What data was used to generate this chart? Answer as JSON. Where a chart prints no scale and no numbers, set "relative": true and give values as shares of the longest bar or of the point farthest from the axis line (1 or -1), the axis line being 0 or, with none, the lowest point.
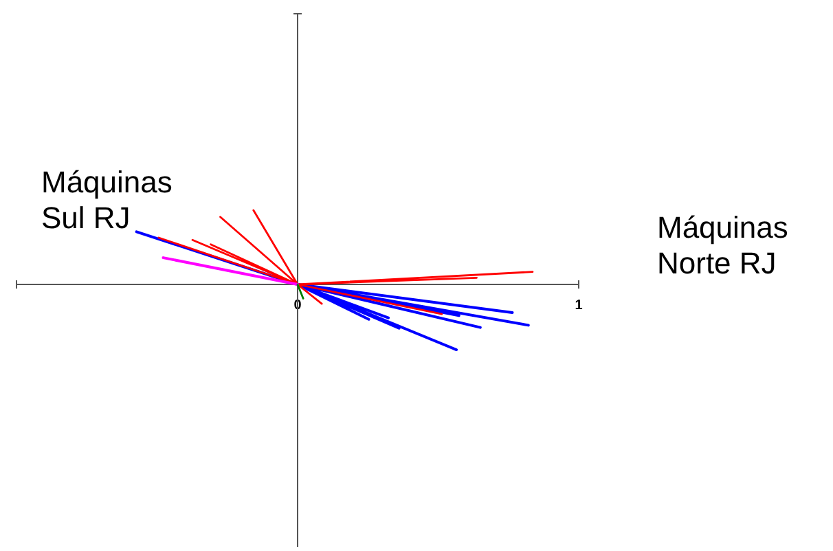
{
  "chart_data": {
    "type": "line",
    "relative": true,
    "marker": "none",
    "line_style": "solid",
    "tick_labels": "x",
    "xlim": [
      -1,
      1
    ],
    "xticks": [
      {
        "value": -1,
        "label": null
      },
      0,
      1
    ],
    "annotations": [
      "Máquinas\nSul RJ",
      "Máquinas\nNorte RJ"
    ],
    "series": [
      {
        "color": "#0000ff",
        "x": [
          0,
          -0.573,
          null,
          0,
          0.764,
          null,
          0,
          0.821,
          null,
          0,
          0.65,
          null,
          0,
          0.565,
          null,
          0,
          0.574,
          null,
          0,
          0.323,
          null,
          0,
          0.253,
          null,
          0,
          0.361
        ],
        "values": [
          0,
          0.71,
          null,
          0,
          -0.38,
          null,
          0,
          -0.55,
          null,
          0,
          -0.58,
          null,
          0,
          -0.88,
          null,
          0,
          -0.42,
          null,
          0,
          -0.45,
          null,
          0,
          -0.47,
          null,
          0,
          -0.59
        ]
      },
      {
        "color": "#ff0000",
        "x": [
          0,
          0.836,
          null,
          0,
          0.637,
          null,
          0,
          -0.275,
          null,
          0,
          -0.157,
          null,
          0,
          -0.494,
          null,
          0,
          -0.374,
          null,
          0,
          -0.309,
          null,
          0,
          0.086,
          null,
          0,
          0.513
        ],
        "values": [
          0,
          0.17,
          null,
          0,
          0.09,
          null,
          0,
          0.91,
          null,
          0,
          1,
          null,
          0,
          0.63,
          null,
          0,
          0.6,
          null,
          0,
          0.54,
          null,
          0,
          -0.26,
          null,
          0,
          -0.4
        ]
      },
      {
        "color": "#ff00ff",
        "x": [
          0,
          -0.478
        ],
        "values": [
          0,
          0.36
        ]
      },
      {
        "color": "#008000",
        "x": [
          0,
          0.02
        ],
        "values": [
          0,
          -0.19
        ]
      }
    ]
  }
}
